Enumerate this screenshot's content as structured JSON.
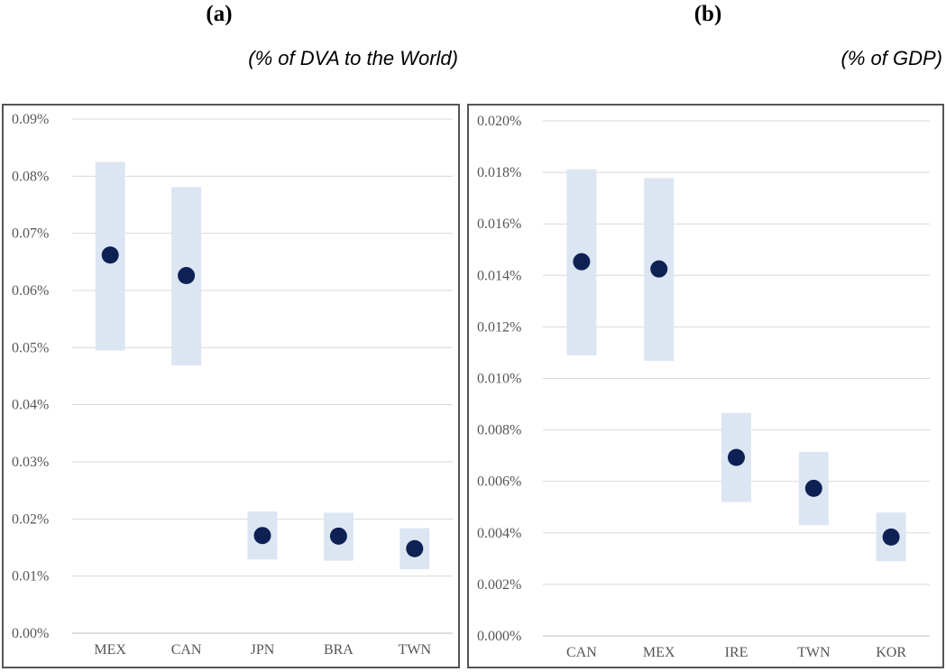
{
  "panels": {
    "a": {
      "letter": "(a)",
      "unit": "(% of DVA to the World)"
    },
    "b": {
      "letter": "(b)",
      "unit": "(% of GDP)"
    }
  },
  "colors": {
    "point": "#0d2155",
    "band": "#dce6f2",
    "grid": "#d9d9d9",
    "axis": "#bfbfbf"
  },
  "chart_data": [
    {
      "type": "scatter",
      "title": "",
      "xlabel": "",
      "ylabel": "",
      "ylim": [
        0,
        0.09
      ],
      "yticks": [
        "0.00%",
        "0.01%",
        "0.02%",
        "0.03%",
        "0.04%",
        "0.05%",
        "0.06%",
        "0.07%",
        "0.08%",
        "0.09%"
      ],
      "categories": [
        "MEX",
        "CAN",
        "JPN",
        "BRA",
        "TWN"
      ],
      "values": [
        0.0662,
        0.0626,
        0.0171,
        0.017,
        0.0148
      ],
      "low": [
        0.0495,
        0.0469,
        0.0129,
        0.0127,
        0.0112
      ],
      "high": [
        0.0825,
        0.0781,
        0.0213,
        0.0211,
        0.0184
      ],
      "grid": true
    },
    {
      "type": "scatter",
      "title": "",
      "xlabel": "",
      "ylabel": "",
      "ylim": [
        0,
        0.02
      ],
      "yticks": [
        "0.000%",
        "0.002%",
        "0.004%",
        "0.006%",
        "0.008%",
        "0.010%",
        "0.012%",
        "0.014%",
        "0.016%",
        "0.018%",
        "0.020%"
      ],
      "categories": [
        "CAN",
        "MEX",
        "IRE",
        "TWN",
        "KOR"
      ],
      "values": [
        0.01453,
        0.01425,
        0.00693,
        0.00573,
        0.00384
      ],
      "low": [
        0.0109,
        0.01068,
        0.0052,
        0.0043,
        0.0029
      ],
      "high": [
        0.01812,
        0.01778,
        0.00866,
        0.00715,
        0.00479
      ],
      "grid": true
    }
  ]
}
